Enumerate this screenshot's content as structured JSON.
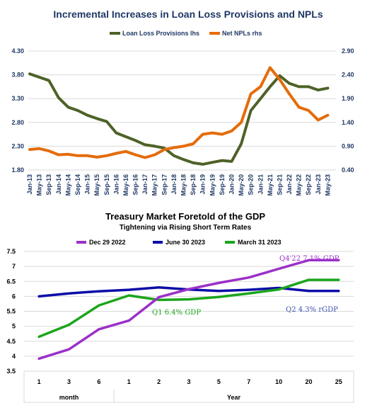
{
  "chart_data": [
    {
      "type": "line",
      "title": "Incremental Increases in Loan Loss Provisions and NPLs",
      "left_axis": {
        "ylim": [
          1.8,
          4.3
        ],
        "ticks": [
          "1.80",
          "2.30",
          "2.80",
          "3.30",
          "3.80",
          "4.30"
        ]
      },
      "right_axis": {
        "ylim": [
          0.4,
          2.9
        ],
        "ticks": [
          "0.40",
          "0.90",
          "1.40",
          "1.90",
          "2.40",
          "2.90"
        ]
      },
      "x_ticks": [
        "Jan-13",
        "May-13",
        "Sep-13",
        "Jan-14",
        "May-14",
        "Sep-14",
        "Jan-15",
        "May-15",
        "Sep-15",
        "Jan-16",
        "May-16",
        "Sep-16",
        "Jan-17",
        "May-17",
        "Sep-17",
        "Jan-18",
        "May-18",
        "Sep-18",
        "Jan-19",
        "May-19",
        "Sep-19",
        "Jan-20",
        "May-20",
        "Sep-20",
        "Jan-21",
        "May-21",
        "Sep-21",
        "Jan-22",
        "May-22",
        "Sep-22",
        "Jan-23",
        "May-23"
      ],
      "legend_position": "top-center",
      "grid": true,
      "series": [
        {
          "name": "Loan Loss Provisions lhs",
          "color": "#4f6228",
          "axis": "left",
          "points": [
            [
              "Jan-13",
              3.82
            ],
            [
              "May-13",
              3.75
            ],
            [
              "Sep-13",
              3.68
            ],
            [
              "Jan-14",
              3.32
            ],
            [
              "May-14",
              3.12
            ],
            [
              "Sep-14",
              3.05
            ],
            [
              "Jan-15",
              2.95
            ],
            [
              "May-15",
              2.88
            ],
            [
              "Sep-15",
              2.82
            ],
            [
              "Jan-16",
              2.58
            ],
            [
              "May-16",
              2.5
            ],
            [
              "Sep-16",
              2.42
            ],
            [
              "Jan-17",
              2.33
            ],
            [
              "May-17",
              2.3
            ],
            [
              "Sep-17",
              2.26
            ],
            [
              "Jan-18",
              2.1
            ],
            [
              "May-18",
              2.02
            ],
            [
              "Sep-18",
              1.95
            ],
            [
              "Jan-19",
              1.92
            ],
            [
              "May-19",
              1.96
            ],
            [
              "Sep-19",
              2.0
            ],
            [
              "Jan-20",
              1.98
            ],
            [
              "May-20",
              2.35
            ],
            [
              "Sep-20",
              3.05
            ],
            [
              "Jan-21",
              3.3
            ],
            [
              "May-21",
              3.55
            ],
            [
              "Sep-21",
              3.78
            ],
            [
              "Jan-22",
              3.62
            ],
            [
              "May-22",
              3.55
            ],
            [
              "Sep-22",
              3.55
            ],
            [
              "Jan-23",
              3.48
            ],
            [
              "May-23",
              3.52
            ]
          ]
        },
        {
          "name": "Net NPLs rhs",
          "color": "#e46c0a",
          "axis": "right",
          "points": [
            [
              "Jan-13",
              0.83
            ],
            [
              "May-13",
              0.85
            ],
            [
              "Sep-13",
              0.8
            ],
            [
              "Jan-14",
              0.72
            ],
            [
              "May-14",
              0.73
            ],
            [
              "Sep-14",
              0.7
            ],
            [
              "Jan-15",
              0.7
            ],
            [
              "May-15",
              0.67
            ],
            [
              "Sep-15",
              0.7
            ],
            [
              "Jan-16",
              0.75
            ],
            [
              "May-16",
              0.79
            ],
            [
              "Sep-16",
              0.72
            ],
            [
              "Jan-17",
              0.66
            ],
            [
              "May-17",
              0.72
            ],
            [
              "Sep-17",
              0.83
            ],
            [
              "Jan-18",
              0.87
            ],
            [
              "May-18",
              0.9
            ],
            [
              "Sep-18",
              0.95
            ],
            [
              "Jan-19",
              1.15
            ],
            [
              "May-19",
              1.18
            ],
            [
              "Sep-19",
              1.15
            ],
            [
              "Jan-20",
              1.22
            ],
            [
              "May-20",
              1.4
            ],
            [
              "Sep-20",
              2.0
            ],
            [
              "Jan-21",
              2.15
            ],
            [
              "May-21",
              2.55
            ],
            [
              "Sep-21",
              2.3
            ],
            [
              "Jan-22",
              2.0
            ],
            [
              "May-22",
              1.72
            ],
            [
              "Sep-22",
              1.65
            ],
            [
              "Jan-23",
              1.45
            ],
            [
              "May-23",
              1.55
            ]
          ]
        }
      ]
    },
    {
      "type": "line",
      "title": "Treasury Market Foretold of the GDP",
      "subtitle": "Tightening  via Rising Short Term Rates",
      "categories": [
        "1",
        "3",
        "6",
        "1",
        "2",
        "3",
        "5",
        "7",
        "10",
        "20",
        "25"
      ],
      "group_labels": [
        "month",
        "Year"
      ],
      "ylim": [
        3.5,
        7.5
      ],
      "yticks": [
        "3.5",
        "4",
        "4.5",
        "5",
        "5.5",
        "6",
        "6.5",
        "7",
        "7.5"
      ],
      "legend_position": "top-center",
      "grid": true,
      "series": [
        {
          "name": "Dec 29 2022",
          "color": "#9b30c8",
          "values": [
            3.92,
            4.23,
            4.9,
            5.19,
            5.97,
            6.24,
            6.45,
            6.63,
            6.92,
            7.21,
            7.21
          ]
        },
        {
          "name": "June 30 2023",
          "color": "#0d0da8",
          "values": [
            6.0,
            6.1,
            6.17,
            6.22,
            6.3,
            6.23,
            6.18,
            6.22,
            6.28,
            6.18,
            6.18
          ]
        },
        {
          "name": "March 31 2023",
          "color": "#1ca51c",
          "values": [
            4.65,
            5.05,
            5.7,
            6.03,
            5.88,
            5.9,
            5.98,
            6.1,
            6.23,
            6.55,
            6.55
          ]
        }
      ],
      "annotations": [
        {
          "text": "Q4'22 7.1% GDP",
          "color": "#9b30c8"
        },
        {
          "text": "Q1 6.4% GDP",
          "color": "#1ca51c"
        },
        {
          "text": "Q2 4.3% rGDP",
          "color": "#3a4fb0"
        }
      ]
    }
  ]
}
